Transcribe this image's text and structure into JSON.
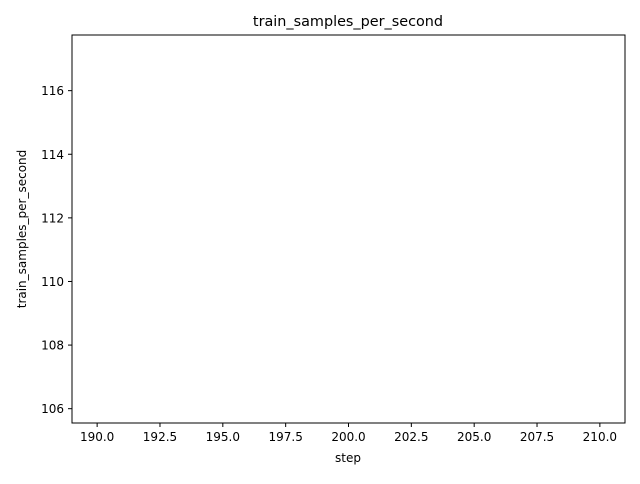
{
  "chart_data": {
    "type": "line",
    "title": "train_samples_per_second",
    "xlabel": "step",
    "ylabel": "train_samples_per_second",
    "xlim": [
      189.0,
      211.0
    ],
    "ylim": [
      105.55,
      117.75
    ],
    "xticks": [
      190.0,
      192.5,
      195.0,
      197.5,
      200.0,
      202.5,
      205.0,
      207.5,
      210.0
    ],
    "xtick_labels": [
      "190.0",
      "192.5",
      "195.0",
      "197.5",
      "200.0",
      "202.5",
      "205.0",
      "207.5",
      "210.0"
    ],
    "yticks": [
      106,
      108,
      110,
      112,
      114,
      116
    ],
    "ytick_labels": [
      "106",
      "108",
      "110",
      "112",
      "114",
      "116"
    ],
    "grid": false,
    "series": [
      {
        "x": [],
        "y": []
      }
    ]
  }
}
